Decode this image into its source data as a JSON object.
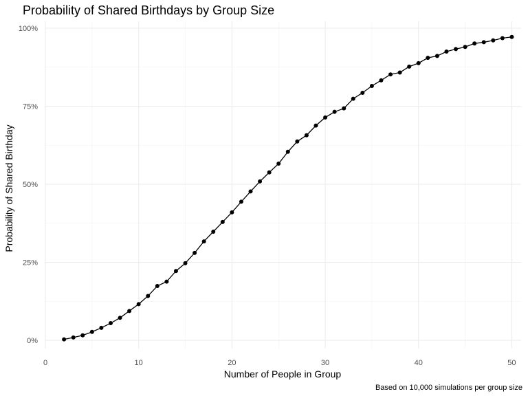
{
  "chart_data": {
    "type": "line",
    "title": "Probability of Shared Birthdays by Group Size",
    "xlabel": "Number of People in Group",
    "ylabel": "Probability of Shared Birthday",
    "caption": "Based on 10,000 simulations per group size",
    "xlim": [
      0,
      51
    ],
    "ylim": [
      -0.02,
      1.0
    ],
    "x_ticks": [
      0,
      10,
      20,
      30,
      40,
      50
    ],
    "x_tick_labels": [
      "0",
      "10",
      "20",
      "30",
      "40",
      "50"
    ],
    "y_ticks": [
      0,
      0.25,
      0.5,
      0.75,
      1.0
    ],
    "y_tick_labels": [
      "0%",
      "25%",
      "50%",
      "75%",
      "100%"
    ],
    "grid": true,
    "markers": true,
    "colors": {
      "line": "#000000",
      "point": "#000000",
      "grid": "#ebebeb",
      "background": "#ffffff"
    },
    "x": [
      2,
      3,
      4,
      5,
      6,
      7,
      8,
      9,
      10,
      11,
      12,
      13,
      14,
      15,
      16,
      17,
      18,
      19,
      20,
      21,
      22,
      23,
      24,
      25,
      26,
      27,
      28,
      29,
      30,
      31,
      32,
      33,
      34,
      35,
      36,
      37,
      38,
      39,
      40,
      41,
      42,
      43,
      44,
      45,
      46,
      47,
      48,
      49,
      50
    ],
    "y": [
      0.003,
      0.009,
      0.016,
      0.027,
      0.04,
      0.055,
      0.072,
      0.094,
      0.116,
      0.142,
      0.174,
      0.188,
      0.222,
      0.247,
      0.28,
      0.317,
      0.348,
      0.379,
      0.41,
      0.444,
      0.477,
      0.509,
      0.538,
      0.566,
      0.604,
      0.637,
      0.657,
      0.688,
      0.714,
      0.732,
      0.743,
      0.774,
      0.793,
      0.815,
      0.833,
      0.852,
      0.858,
      0.877,
      0.888,
      0.905,
      0.911,
      0.925,
      0.933,
      0.94,
      0.951,
      0.955,
      0.961,
      0.968,
      0.972
    ]
  }
}
